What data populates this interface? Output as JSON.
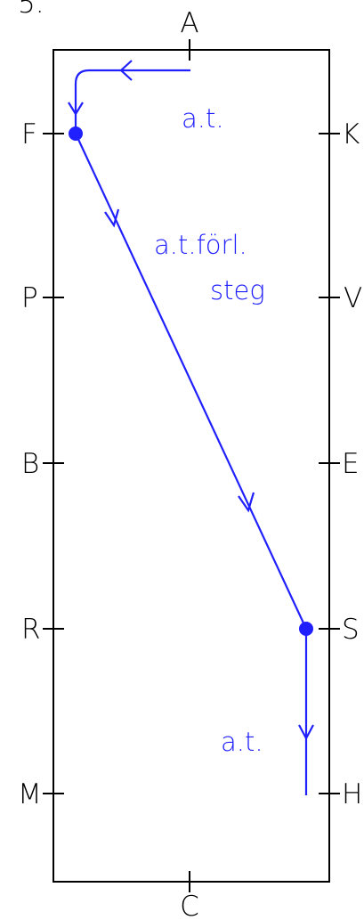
{
  "header_partial": "5.",
  "colors": {
    "arena": "#000000",
    "route": "#2020ff"
  },
  "arena_letters": {
    "top": "A",
    "bottom": "C",
    "left": [
      "F",
      "P",
      "B",
      "R",
      "M"
    ],
    "right": [
      "K",
      "V",
      "E",
      "S",
      "H"
    ]
  },
  "route": {
    "start": "A",
    "points": [
      "A",
      "F",
      "S",
      "H"
    ],
    "markers": [
      "F",
      "S"
    ],
    "labels": {
      "first": "a.t.",
      "diagonal_line1": "a.t.förl.",
      "diagonal_line2": "steg",
      "last": "a.t."
    }
  }
}
